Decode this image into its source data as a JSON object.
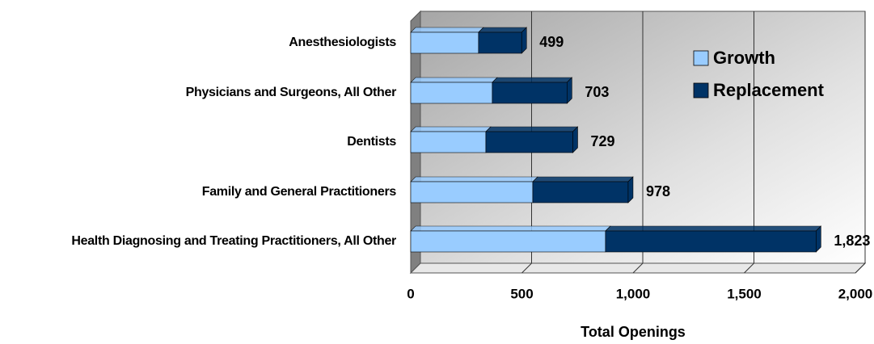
{
  "chart_data": {
    "type": "bar",
    "orientation": "horizontal",
    "stacked": true,
    "x_label": "Total Openings",
    "categories": [
      "Anesthesiologists",
      "Physicians and Surgeons, All Other",
      "Dentists",
      "Family and General Practitioners",
      "Health Diagnosing and Treating Practitioners, All Other"
    ],
    "series": [
      {
        "name": "Growth",
        "color": "#99ccff",
        "values": [
          305,
          367,
          338,
          549,
          876
        ]
      },
      {
        "name": "Replacement",
        "color": "#003366",
        "values": [
          194,
          336,
          391,
          429,
          947
        ]
      }
    ],
    "totals": [
      499,
      703,
      729,
      978,
      1823
    ],
    "total_labels": [
      "499",
      "703",
      "729",
      "978",
      "1,823"
    ],
    "xlim": [
      0,
      2000
    ],
    "xticks": [
      0,
      500,
      {
        "value": 1000,
        "label": "1,000"
      },
      {
        "value": 1500,
        "label": "1,500"
      },
      {
        "value": 2000,
        "label": "2,000"
      }
    ],
    "grid": true,
    "legend": "upper right"
  }
}
